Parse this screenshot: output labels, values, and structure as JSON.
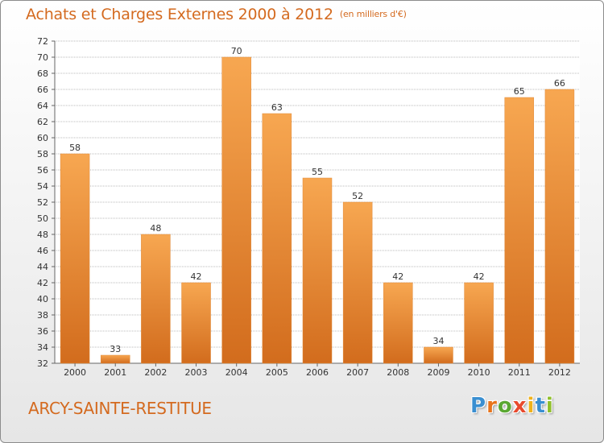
{
  "header": {
    "title": "Achats et Charges Externes 2000 à 2012",
    "unit": "(en milliers d'€)"
  },
  "commune": "ARCY-SAINTE-RESTITUE",
  "logo": {
    "letters": [
      "P",
      "r",
      "o",
      "x",
      "i",
      "t",
      "i"
    ],
    "letter_colors": [
      "#3a8fd1",
      "#e8741c",
      "#5aa832",
      "#e84a2e",
      "#f0b21b",
      "#3a8fd1",
      "#8fbf2a"
    ]
  },
  "colors": {
    "bar_light": "#f7a751",
    "bar_dark": "#d26c1d",
    "grid": "#bbbbbb",
    "accent": "#d46a1f"
  },
  "chart_data": {
    "type": "bar",
    "categories": [
      "2000",
      "2001",
      "2002",
      "2003",
      "2004",
      "2005",
      "2006",
      "2007",
      "2008",
      "2009",
      "2010",
      "2011",
      "2012"
    ],
    "values": [
      58,
      33,
      48,
      42,
      70,
      63,
      55,
      52,
      42,
      34,
      42,
      65,
      66
    ],
    "ylim": [
      32,
      72
    ],
    "ytick_step": 2,
    "grid": "horizontal"
  }
}
